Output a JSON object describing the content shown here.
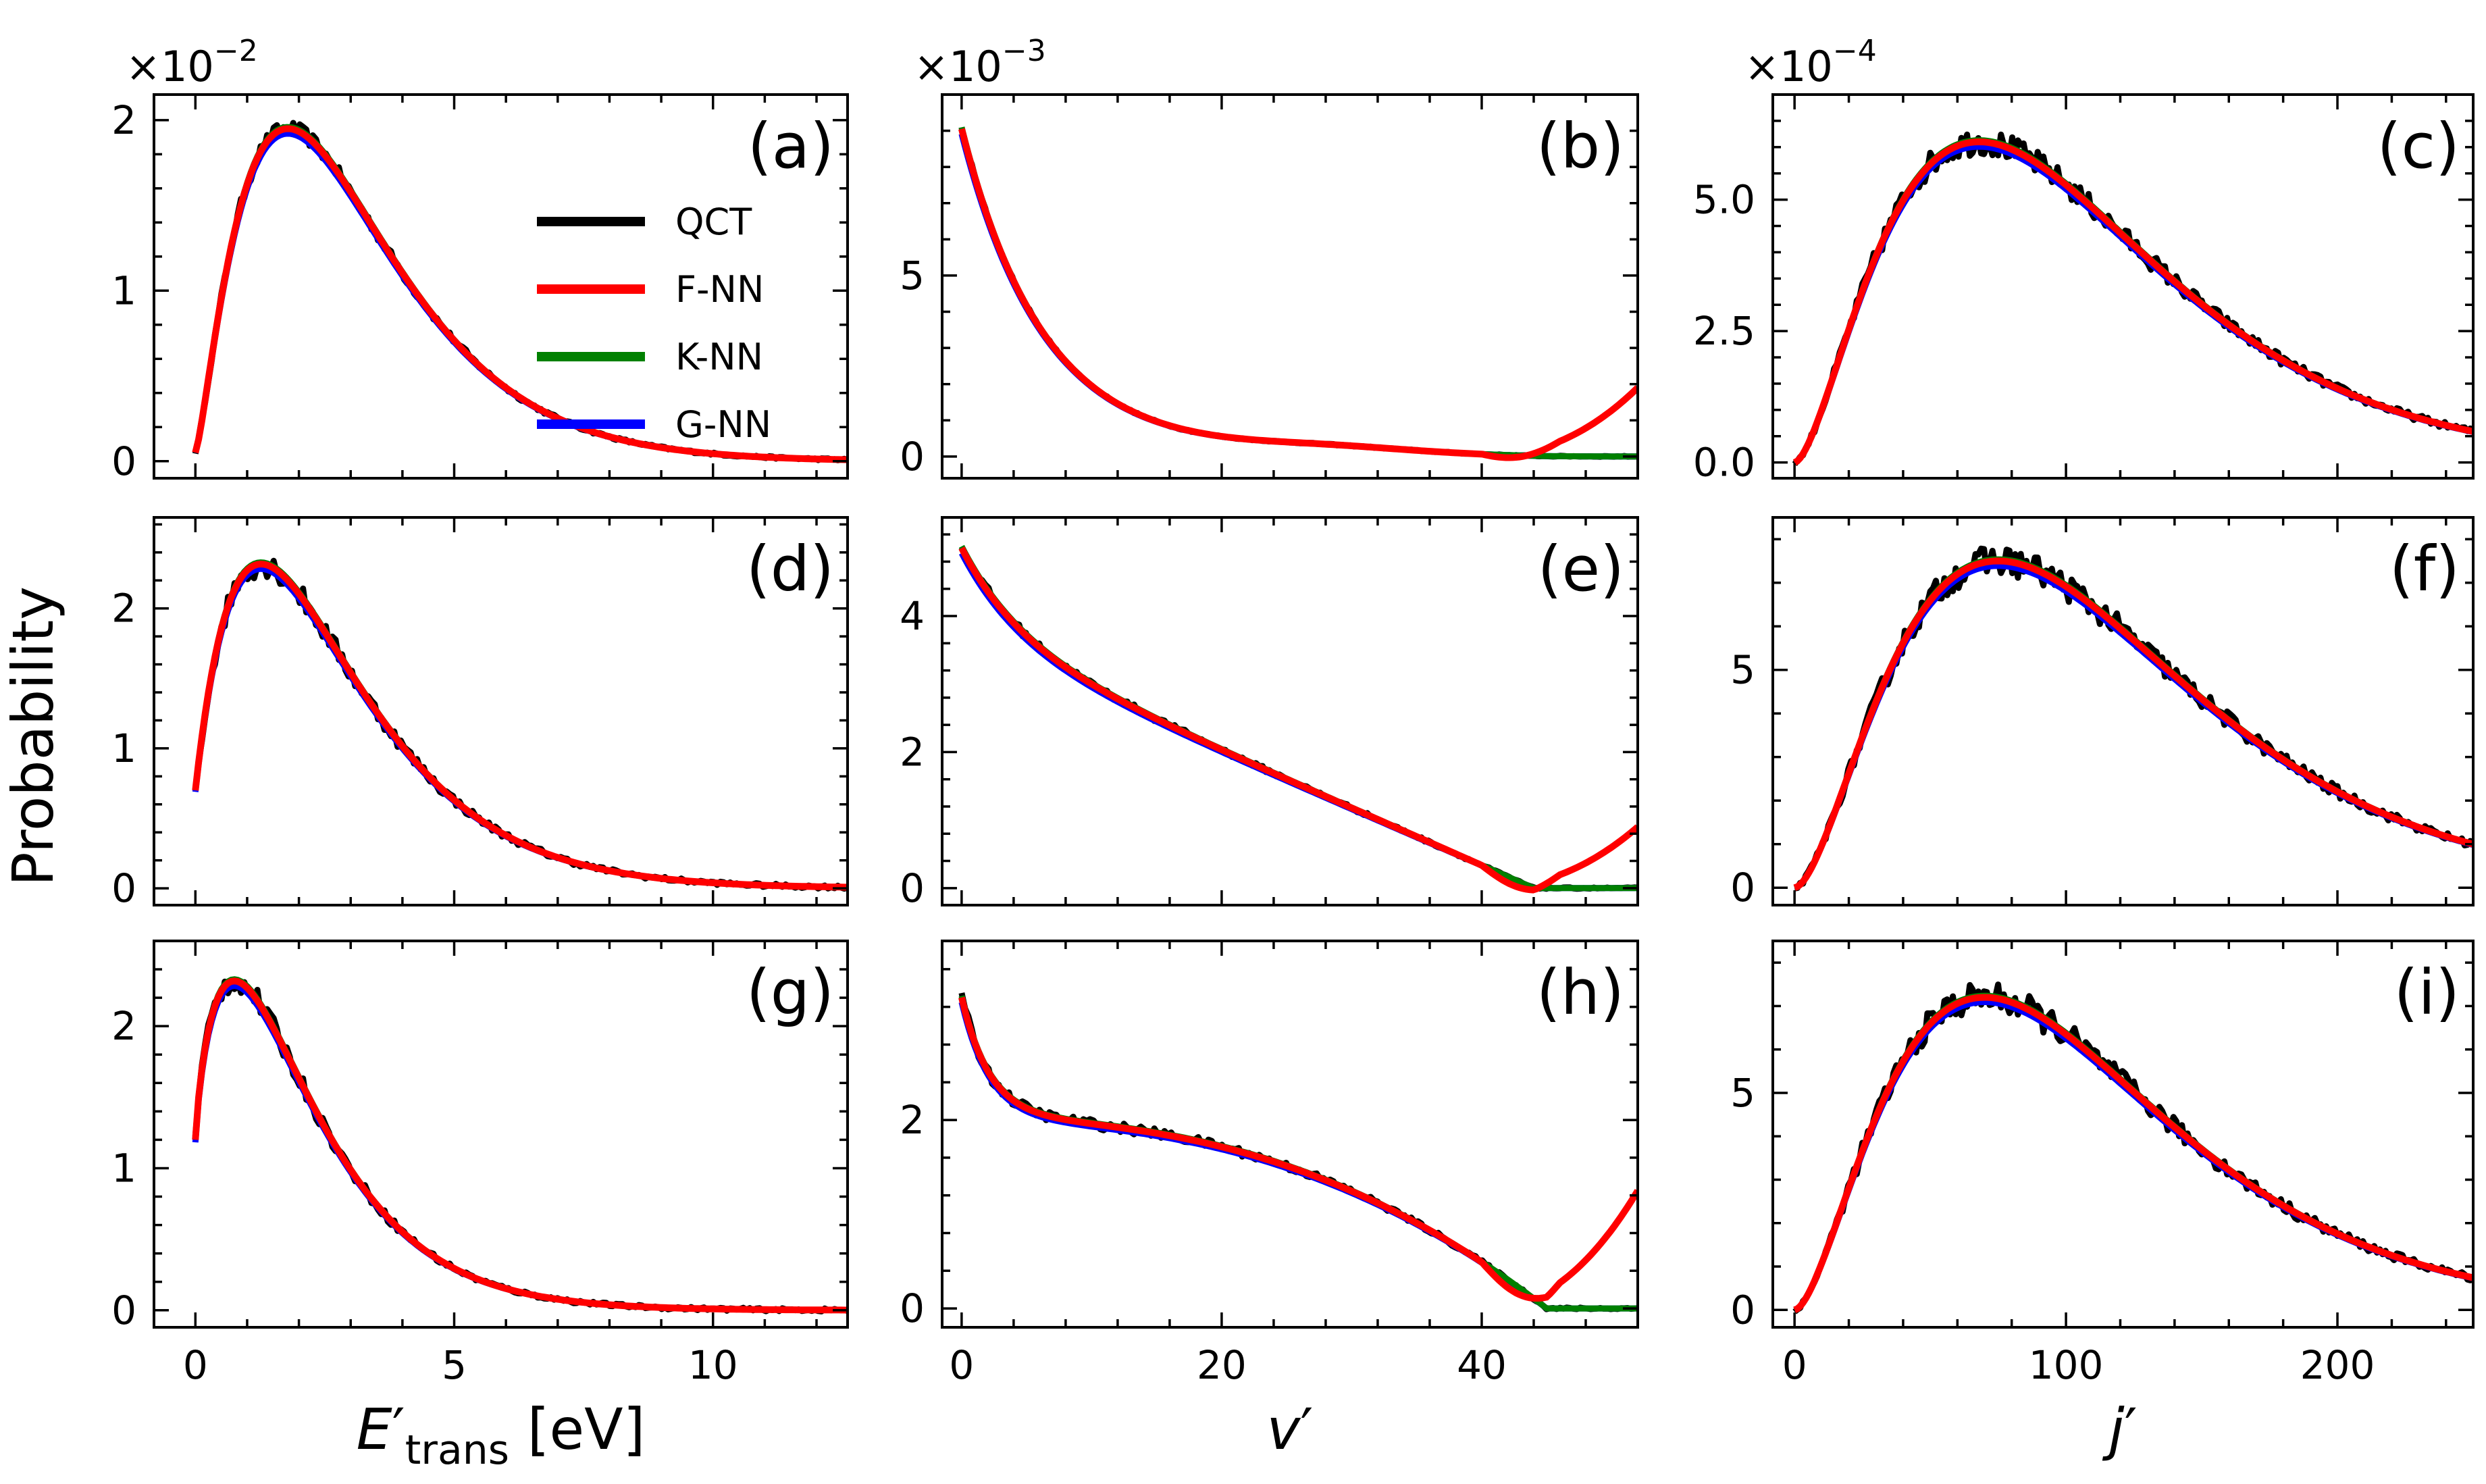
{
  "figure": {
    "ylabel": "Probability",
    "legend": {
      "placement": "panel-a-right",
      "entries": [
        {
          "name": "QCT",
          "color": "#000000"
        },
        {
          "name": "F-NN",
          "color": "#ff0000"
        },
        {
          "name": "K-NN",
          "color": "#008000"
        },
        {
          "name": "G-NN",
          "color": "#0000ff"
        }
      ]
    },
    "columns": [
      {
        "label_main": "E",
        "label_prime": "′",
        "label_sub": "trans",
        "label_suffix": " [eV]",
        "xlim": [
          -0.8,
          12.6
        ],
        "xticks": [
          0,
          5,
          10
        ],
        "xtick_labels": [
          "0",
          "5",
          "10"
        ],
        "exponent": {
          "base": "×10",
          "power": "−2"
        }
      },
      {
        "label_main": "v",
        "label_prime": "′",
        "xlim": [
          -1.5,
          52
        ],
        "xticks": [
          0,
          20,
          40
        ],
        "xtick_labels": [
          "0",
          "20",
          "40"
        ],
        "exponent": {
          "base": "×10",
          "power": "−3"
        }
      },
      {
        "label_main": "j",
        "label_prime": "′",
        "xlim": [
          -8,
          250
        ],
        "xticks": [
          0,
          100,
          200
        ],
        "xtick_labels": [
          "0",
          "100",
          "200"
        ],
        "exponent": {
          "base": "×10",
          "power": "−4"
        }
      }
    ]
  },
  "chart_data": [
    {
      "type": "line",
      "panel": "(a)",
      "col": 0,
      "row": 0,
      "ylim": [
        -0.1,
        2.15
      ],
      "yticks": [
        0,
        1,
        2
      ],
      "ytick_labels": [
        "0",
        "1",
        "2"
      ],
      "model": {
        "kind": "gamma",
        "A": 1.95,
        "p": 1.8,
        "s": 1.35,
        "b": 0.05
      },
      "qct_noise": 0.04,
      "red_tail": 0
    },
    {
      "type": "line",
      "panel": "(b)",
      "col": 1,
      "row": 0,
      "ylim": [
        -0.6,
        10.0
      ],
      "yticks": [
        0,
        5
      ],
      "ytick_labels": [
        "0",
        "5"
      ],
      "model": {
        "kind": "decay",
        "A": 8.8,
        "tau": 6.2,
        "c": 0.25,
        "bump": 0.25,
        "bc": 28,
        "bw": 9
      },
      "qct_noise": 0.08,
      "red_tail": 1.9
    },
    {
      "type": "line",
      "panel": "(c)",
      "col": 2,
      "row": 0,
      "ylim": [
        -0.3,
        7.0
      ],
      "yticks": [
        0,
        2.5,
        5
      ],
      "ytick_labels": [
        "0.0",
        "2.5",
        "5.0"
      ],
      "model": {
        "kind": "gamma",
        "A": 6.1,
        "p": 68,
        "s": 40,
        "b": 0
      },
      "qct_noise": 0.22,
      "red_tail": 0
    },
    {
      "type": "line",
      "panel": "(d)",
      "col": 0,
      "row": 1,
      "ylim": [
        -0.12,
        2.65
      ],
      "yticks": [
        0,
        1,
        2
      ],
      "ytick_labels": [
        "0",
        "1",
        "2"
      ],
      "model": {
        "kind": "gamma",
        "A": 2.3,
        "p": 1.45,
        "s": 1.45,
        "b": 0.7
      },
      "qct_noise": 0.08,
      "red_tail": 0
    },
    {
      "type": "line",
      "panel": "(e)",
      "col": 1,
      "row": 1,
      "ylim": [
        -0.25,
        5.45
      ],
      "yticks": [
        0,
        2,
        4
      ],
      "ytick_labels": [
        "0",
        "2",
        "4"
      ],
      "model": {
        "kind": "bidecay",
        "A": 5.0,
        "a1": 1.3,
        "t1": 4.5,
        "L": 44
      },
      "qct_noise": 0.07,
      "red_tail": 0.9
    },
    {
      "type": "line",
      "panel": "(f)",
      "col": 2,
      "row": 1,
      "ylim": [
        -0.4,
        8.5
      ],
      "yticks": [
        0,
        5
      ],
      "ytick_labels": [
        "0",
        "5"
      ],
      "model": {
        "kind": "gamma",
        "A": 7.5,
        "p": 75,
        "s": 42,
        "b": 0
      },
      "qct_noise": 0.3,
      "red_tail": 0
    },
    {
      "type": "line",
      "panel": "(g)",
      "col": 0,
      "row": 2,
      "ylim": [
        -0.12,
        2.6
      ],
      "yticks": [
        0,
        1,
        2
      ],
      "ytick_labels": [
        "0",
        "1",
        "2"
      ],
      "model": {
        "kind": "gamma",
        "A": 2.25,
        "p": 1.05,
        "s": 1.25,
        "b": 1.2
      },
      "qct_noise": 0.07,
      "red_tail": 0
    },
    {
      "type": "line",
      "panel": "(h)",
      "col": 1,
      "row": 2,
      "ylim": [
        -0.2,
        3.9
      ],
      "yticks": [
        0,
        2
      ],
      "ytick_labels": [
        "0",
        "2"
      ],
      "model": {
        "kind": "plateau",
        "A": 3.3,
        "k": 2.2,
        "P": 2.0,
        "d": 0.007,
        "L": 45
      },
      "qct_noise": 0.07,
      "red_tail": 1.25
    },
    {
      "type": "line",
      "panel": "(i)",
      "col": 2,
      "row": 2,
      "ylim": [
        -0.4,
        8.5
      ],
      "yticks": [
        0,
        5
      ],
      "ytick_labels": [
        "0",
        "5"
      ],
      "model": {
        "kind": "gamma",
        "A": 7.2,
        "p": 70,
        "s": 40,
        "b": 0
      },
      "qct_noise": 0.3,
      "red_tail": 0
    }
  ]
}
